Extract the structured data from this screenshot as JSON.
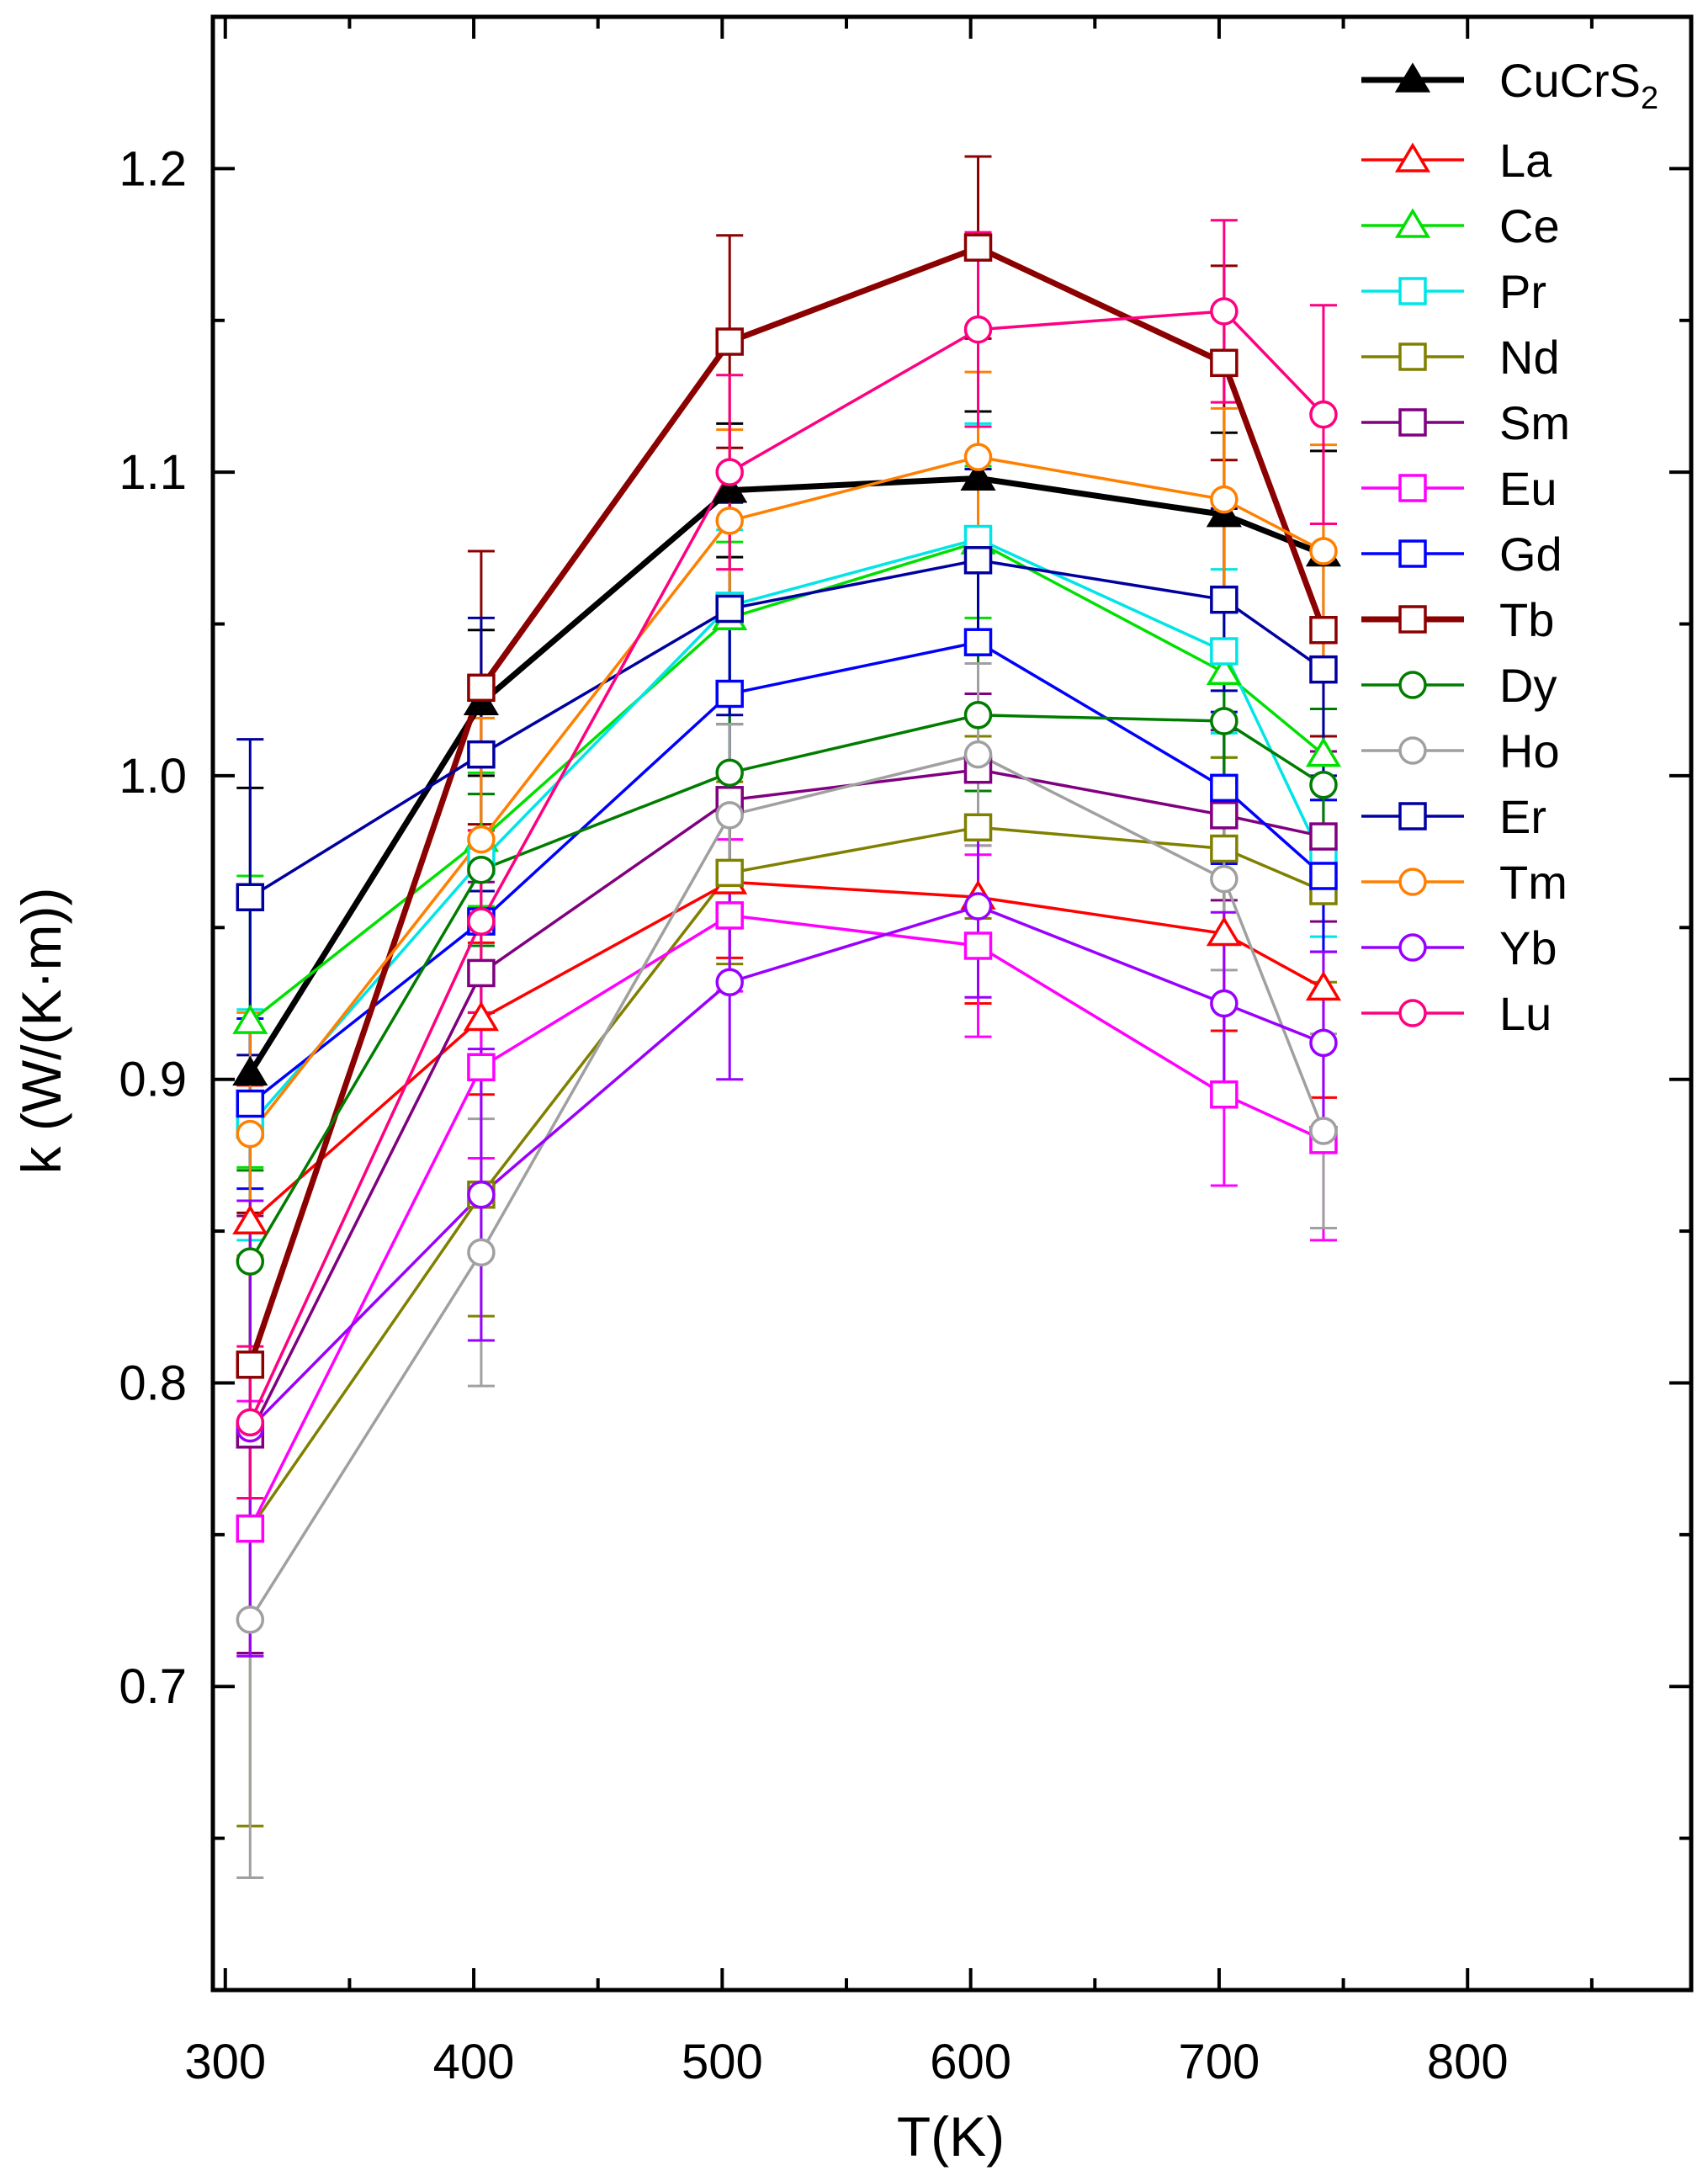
{
  "chart_data": {
    "type": "line",
    "title": "",
    "xlabel": "T(K)",
    "ylabel": "k (W/(K·m))",
    "xlim": [
      295,
      890
    ],
    "ylim": [
      0.6,
      1.25
    ],
    "xticks": [
      300,
      400,
      500,
      600,
      700,
      800
    ],
    "xtick_labels": [
      "300",
      "400",
      "500",
      "600",
      "700",
      "800"
    ],
    "yticks": [
      0.7,
      0.8,
      0.9,
      1.0,
      1.1,
      1.2
    ],
    "ytick_labels": [
      "0.7",
      "0.8",
      "0.9",
      "1.0",
      "1.1",
      "1.2"
    ],
    "grid": false,
    "legend_position": "top-right",
    "x": [
      310,
      403,
      503,
      603,
      702,
      742
    ],
    "series": [
      {
        "name": "CuCrS2",
        "legend_main": "CuCrS",
        "legend_sub": "2",
        "color": "#000000",
        "marker": "triangle",
        "filled": true,
        "bold": true,
        "values": [
          0.902,
          1.024,
          1.094,
          1.098,
          1.086,
          1.073
        ],
        "errors": [
          0.094,
          0.024,
          0.022,
          0.022,
          0.027,
          0.034
        ]
      },
      {
        "name": "La",
        "color": "#ff0000",
        "marker": "triangle",
        "filled": false,
        "values": [
          0.853,
          0.92,
          0.965,
          0.96,
          0.948,
          0.93
        ],
        "errors": [
          0.045,
          0.025,
          0.025,
          0.035,
          0.032,
          0.036
        ]
      },
      {
        "name": "Ce",
        "color": "#00e000",
        "marker": "triangle",
        "filled": false,
        "values": [
          0.919,
          0.979,
          1.052,
          1.077,
          1.034,
          1.007
        ],
        "errors": [
          0.048,
          0.022,
          0.025,
          0.025,
          0.028,
          0.025
        ]
      },
      {
        "name": "Pr",
        "color": "#00e5e5",
        "marker": "square",
        "filled": false,
        "values": [
          0.885,
          0.972,
          1.056,
          1.078,
          1.041,
          0.972
        ],
        "errors": [
          0.038,
          0.022,
          0.025,
          0.038,
          0.027,
          0.025
        ]
      },
      {
        "name": "Nd",
        "color": "#808000",
        "marker": "square",
        "filled": false,
        "values": [
          0.752,
          0.862,
          0.968,
          0.983,
          0.976,
          0.962
        ],
        "errors": [
          0.098,
          0.04,
          0.03,
          0.03,
          0.03,
          0.03
        ]
      },
      {
        "name": "Sm",
        "color": "#800080",
        "marker": "square",
        "filled": false,
        "values": [
          0.783,
          0.935,
          0.992,
          1.002,
          0.987,
          0.98
        ],
        "errors": [
          0.072,
          0.03,
          0.025,
          0.025,
          0.028,
          0.028
        ]
      },
      {
        "name": "Eu",
        "color": "#ff00ff",
        "marker": "square",
        "filled": false,
        "values": [
          0.752,
          0.904,
          0.954,
          0.944,
          0.895,
          0.88
        ],
        "errors": [
          0.042,
          0.03,
          0.025,
          0.03,
          0.03,
          0.033
        ]
      },
      {
        "name": "Gd",
        "color": "#0000ff",
        "marker": "square",
        "filled": false,
        "values": [
          0.892,
          0.952,
          1.027,
          1.044,
          0.996,
          0.967
        ],
        "errors": [
          0.028,
          0.03,
          0.025,
          0.025,
          0.025,
          0.025
        ]
      },
      {
        "name": "Tb",
        "color": "#8b0000",
        "marker": "square",
        "filled": false,
        "bold": true,
        "values": [
          0.806,
          1.029,
          1.143,
          1.174,
          1.136,
          1.048
        ],
        "errors": [
          0.05,
          0.045,
          0.035,
          0.03,
          0.032,
          0.035
        ]
      },
      {
        "name": "Dy",
        "color": "#007d00",
        "marker": "circle",
        "filled": false,
        "values": [
          0.84,
          0.969,
          1.001,
          1.02,
          1.018,
          0.997
        ],
        "errors": [
          0.03,
          0.025,
          0.03,
          0.025,
          0.025,
          0.025
        ]
      },
      {
        "name": "Ho",
        "color": "#a0a0a0",
        "marker": "circle",
        "filled": false,
        "values": [
          0.722,
          0.843,
          0.987,
          1.007,
          0.966,
          0.883
        ],
        "errors": [
          0.085,
          0.044,
          0.03,
          0.03,
          0.03,
          0.032
        ]
      },
      {
        "name": "Er",
        "color": "#0000a0",
        "marker": "square",
        "filled": false,
        "values": [
          0.96,
          1.007,
          1.055,
          1.071,
          1.058,
          1.035
        ],
        "errors": [
          0.052,
          0.045,
          0.035,
          0.03,
          0.03,
          0.035
        ]
      },
      {
        "name": "Tm",
        "color": "#ff8000",
        "marker": "circle",
        "filled": false,
        "values": [
          0.882,
          0.979,
          1.084,
          1.105,
          1.091,
          1.074
        ],
        "errors": [
          0.04,
          0.04,
          0.03,
          0.028,
          0.03,
          0.035
        ]
      },
      {
        "name": "Yb",
        "color": "#9900ff",
        "marker": "circle",
        "filled": false,
        "values": [
          0.785,
          0.862,
          0.932,
          0.957,
          0.925,
          0.912
        ],
        "errors": [
          0.075,
          0.048,
          0.032,
          0.03,
          0.03,
          0.03
        ]
      },
      {
        "name": "Lu",
        "color": "#ff0080",
        "marker": "circle",
        "filled": false,
        "values": [
          0.787,
          0.952,
          1.1,
          1.147,
          1.153,
          1.119
        ],
        "errors": [
          0.025,
          0.03,
          0.032,
          0.032,
          0.03,
          0.036
        ]
      }
    ]
  }
}
